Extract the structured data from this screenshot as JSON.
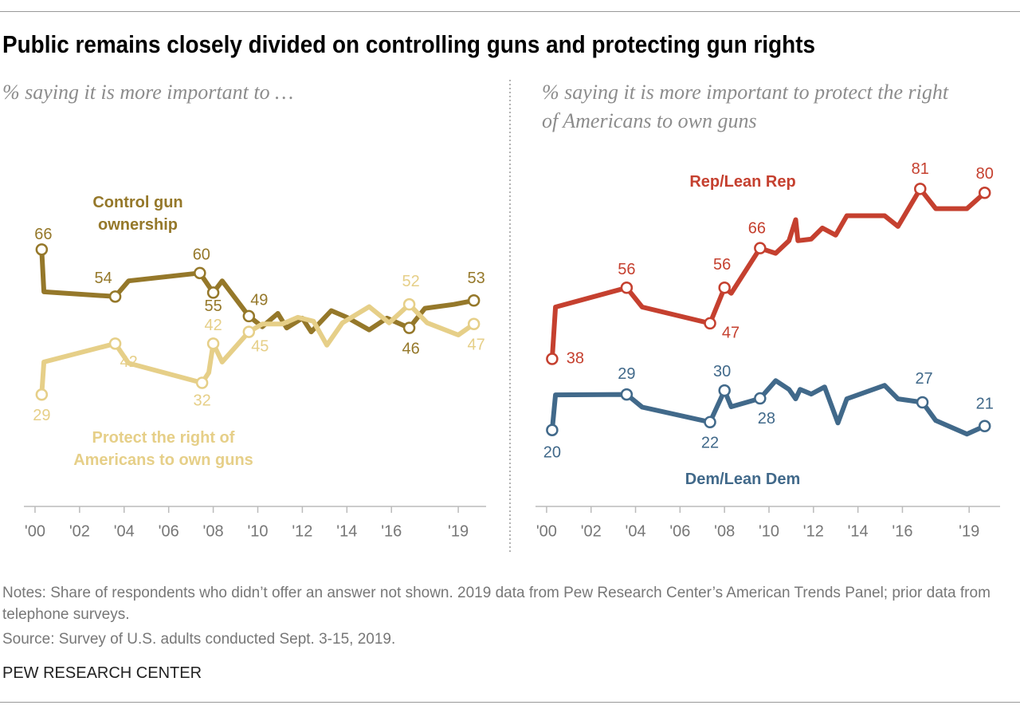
{
  "title": "Public remains closely divided on controlling guns and protecting gun rights",
  "notes": "Notes: Share of respondents who didn’t offer an answer not shown. 2019 data from Pew Research Center’s American Trends Panel; prior data from telephone surveys.",
  "source": "Source: Survey of U.S. adults conducted Sept. 3-15, 2019.",
  "brand": "PEW RESEARCH CENTER",
  "chart_data": [
    {
      "type": "line",
      "subtitle": "% saying it is more important to …",
      "xlim": [
        1999,
        2021
      ],
      "ylim": [
        20,
        80
      ],
      "xticks": [
        {
          "value": 2000,
          "label": "'00"
        },
        {
          "value": 2002,
          "label": "'02"
        },
        {
          "value": 2004,
          "label": "'04"
        },
        {
          "value": 2006,
          "label": "'06"
        },
        {
          "value": 2008,
          "label": "'08"
        },
        {
          "value": 2010,
          "label": "'10"
        },
        {
          "value": 2012,
          "label": "'12"
        },
        {
          "value": 2014,
          "label": "'14"
        },
        {
          "value": 2016,
          "label": "'16"
        },
        {
          "value": 2019,
          "label": "'19"
        }
      ],
      "series": [
        {
          "name": "Control gun ownership",
          "color": "#95782a",
          "x": [
            2000.3,
            2000.4,
            2003.6,
            2004.2,
            2007.4,
            2007.7,
            2008.0,
            2008.4,
            2009.6,
            2010.2,
            2010.9,
            2011.3,
            2012.0,
            2012.4,
            2013.3,
            2014.0,
            2015.0,
            2015.8,
            2016.8,
            2017.5,
            2018.8,
            2019.7
          ],
          "values": [
            66,
            55.2,
            54,
            58,
            60,
            57.5,
            55,
            58,
            49,
            46.3,
            49.7,
            46,
            48.5,
            45,
            50.4,
            48.7,
            45.5,
            48.5,
            46,
            51,
            52,
            53
          ],
          "marked": [
            0,
            2,
            4,
            6,
            8,
            18,
            21
          ]
        },
        {
          "name": "Protect the right of Americans to own guns",
          "color": "#e6cf88",
          "x": [
            2000.3,
            2000.4,
            2003.6,
            2004.2,
            2007.5,
            2007.8,
            2008.0,
            2008.4,
            2009.6,
            2010.2,
            2011.1,
            2011.8,
            2012.5,
            2013.1,
            2013.8,
            2015.0,
            2015.9,
            2016.8,
            2017.6,
            2019.0,
            2019.7
          ],
          "values": [
            29,
            37.3,
            42,
            37,
            32,
            34.6,
            42,
            37.3,
            45,
            47,
            47,
            48.7,
            47.7,
            41.6,
            47.3,
            51.4,
            47.3,
            52,
            47.3,
            44.2,
            47
          ],
          "marked": [
            0,
            2,
            4,
            6,
            8,
            17,
            20
          ]
        }
      ]
    },
    {
      "type": "line",
      "subtitle": "% saying it is more important to protect the right of Americans to own guns",
      "xlim": [
        1999,
        2021
      ],
      "ylim": [
        15,
        85
      ],
      "xticks": [
        {
          "value": 2000,
          "label": "'00"
        },
        {
          "value": 2002,
          "label": "'02"
        },
        {
          "value": 2004,
          "label": "'04"
        },
        {
          "value": 2006,
          "label": "'06"
        },
        {
          "value": 2008,
          "label": "'08"
        },
        {
          "value": 2010,
          "label": "'10"
        },
        {
          "value": 2012,
          "label": "'12"
        },
        {
          "value": 2014,
          "label": "'14"
        },
        {
          "value": 2016,
          "label": "'16"
        },
        {
          "value": 2019,
          "label": "'19"
        }
      ],
      "series": [
        {
          "name": "Rep/Lean Rep",
          "color": "#c5402f",
          "x": [
            2000.25,
            2000.4,
            2003.6,
            2004.3,
            2007.35,
            2008.0,
            2008.3,
            2009.6,
            2010.3,
            2010.9,
            2011.2,
            2011.3,
            2011.9,
            2012.4,
            2013.0,
            2013.5,
            2015.2,
            2015.8,
            2016.8,
            2017.5,
            2018.9,
            2019.7
          ],
          "values": [
            38,
            51.1,
            56,
            51.1,
            47,
            56,
            54.6,
            66,
            64.7,
            67.9,
            73.2,
            67.9,
            68.3,
            71.1,
            69.3,
            74.2,
            74.2,
            71.5,
            81,
            76,
            76,
            80
          ],
          "marked": [
            0,
            2,
            4,
            5,
            7,
            18,
            21
          ]
        },
        {
          "name": "Dem/Lean Dem",
          "color": "#41698a",
          "x": [
            2000.25,
            2000.4,
            2003.6,
            2004.3,
            2007.35,
            2008.0,
            2008.3,
            2009.6,
            2010.3,
            2010.9,
            2011.2,
            2011.4,
            2011.9,
            2012.5,
            2013.1,
            2013.5,
            2015.2,
            2015.8,
            2016.9,
            2017.5,
            2018.9,
            2019.7
          ],
          "values": [
            20,
            28.9,
            29,
            25.8,
            22,
            30,
            25.9,
            28,
            32.5,
            30.3,
            27.9,
            30.3,
            29.1,
            30.9,
            21.8,
            27.9,
            31.3,
            27.9,
            27,
            22.4,
            19,
            21
          ],
          "marked": [
            0,
            2,
            4,
            5,
            7,
            18,
            21
          ]
        }
      ]
    }
  ]
}
